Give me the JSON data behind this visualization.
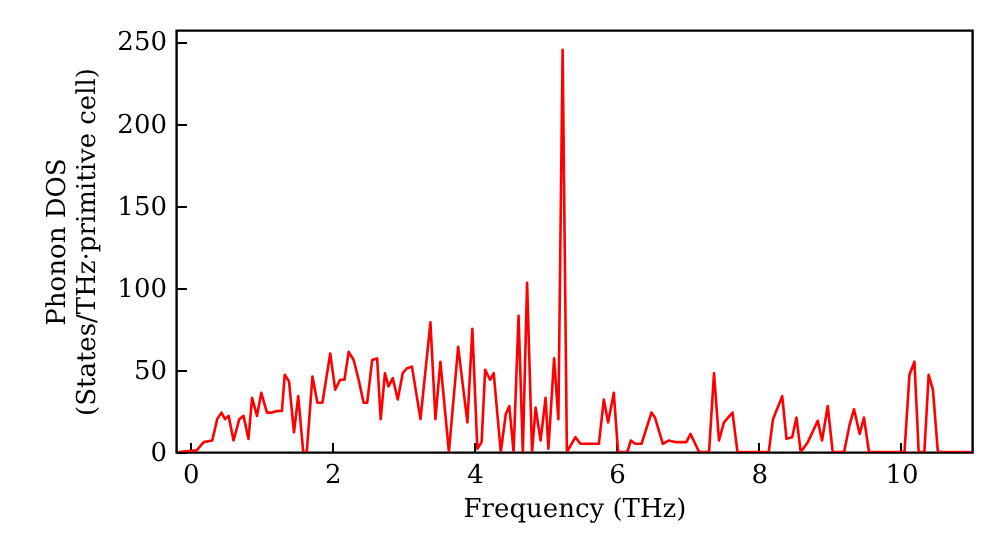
{
  "chart_data": {
    "type": "line",
    "xlabel": "Frequency (THz)",
    "ylabel": "Phonon DOS\n(States/THz·primitive cell)",
    "xlim": [
      -0.2,
      11
    ],
    "ylim": [
      0,
      257
    ],
    "xticks": [
      0,
      2,
      4,
      6,
      8,
      10
    ],
    "yticks": [
      0,
      50,
      100,
      150,
      200,
      250
    ],
    "grid": false,
    "series": [
      {
        "color": "#ff0000",
        "x": [
          -0.16,
          0.09,
          0.19,
          0.31,
          0.38,
          0.44,
          0.49,
          0.54,
          0.61,
          0.69,
          0.75,
          0.82,
          0.87,
          0.94,
          1.0,
          1.08,
          1.15,
          1.22,
          1.29,
          1.33,
          1.39,
          1.46,
          1.52,
          1.59,
          1.64,
          1.72,
          1.79,
          1.86,
          1.97,
          2.04,
          2.11,
          2.17,
          2.23,
          2.3,
          2.37,
          2.44,
          2.49,
          2.56,
          2.63,
          2.68,
          2.74,
          2.79,
          2.85,
          2.92,
          2.99,
          3.05,
          3.12,
          3.24,
          3.38,
          3.45,
          3.52,
          3.64,
          3.77,
          3.9,
          3.97,
          4.04,
          4.1,
          4.15,
          4.22,
          4.27,
          4.37,
          4.44,
          4.49,
          4.55,
          4.62,
          4.68,
          4.74,
          4.81,
          4.86,
          4.93,
          5.0,
          5.04,
          5.12,
          5.18,
          5.24,
          5.3,
          5.42,
          5.49,
          5.75,
          5.82,
          5.88,
          5.96,
          6.02,
          6.15,
          6.2,
          6.26,
          6.35,
          6.49,
          6.54,
          6.65,
          6.73,
          6.84,
          6.98,
          7.04,
          7.16,
          7.3,
          7.37,
          7.44,
          7.51,
          7.63,
          7.7,
          8.14,
          8.2,
          8.33,
          8.39,
          8.47,
          8.53,
          8.59,
          8.69,
          8.83,
          8.89,
          8.97,
          9.04,
          9.2,
          9.28,
          9.34,
          9.42,
          9.48,
          9.55,
          10.05,
          10.12,
          10.19,
          10.25,
          10.33,
          10.39,
          10.45,
          10.52,
          10.98
        ],
        "values": [
          0,
          1,
          6,
          7,
          20,
          24,
          20,
          22,
          7,
          20,
          22,
          8,
          33,
          22,
          36,
          24,
          24,
          25,
          25,
          47,
          43,
          12,
          34,
          0,
          0,
          46,
          30,
          30,
          60,
          38,
          44,
          44,
          61,
          56,
          44,
          30,
          30,
          56,
          57,
          20,
          48,
          40,
          45,
          32,
          48,
          51,
          52,
          20,
          79,
          20,
          55,
          0,
          64,
          18,
          75,
          2,
          6,
          50,
          44,
          48,
          0,
          23,
          28,
          0,
          83,
          0,
          103,
          0,
          27,
          7,
          33,
          2,
          57,
          20,
          245,
          0,
          9,
          5,
          5,
          32,
          18,
          36,
          0,
          0,
          7,
          5,
          5,
          24,
          21,
          5,
          7,
          6,
          6,
          11,
          0,
          0,
          48,
          7,
          18,
          24,
          0,
          0,
          20,
          34,
          8,
          9,
          21,
          0,
          6,
          19,
          7,
          28,
          0,
          0,
          17,
          26,
          11,
          21,
          0,
          0,
          47,
          55,
          0,
          0,
          47,
          38,
          0,
          0
        ]
      }
    ]
  }
}
